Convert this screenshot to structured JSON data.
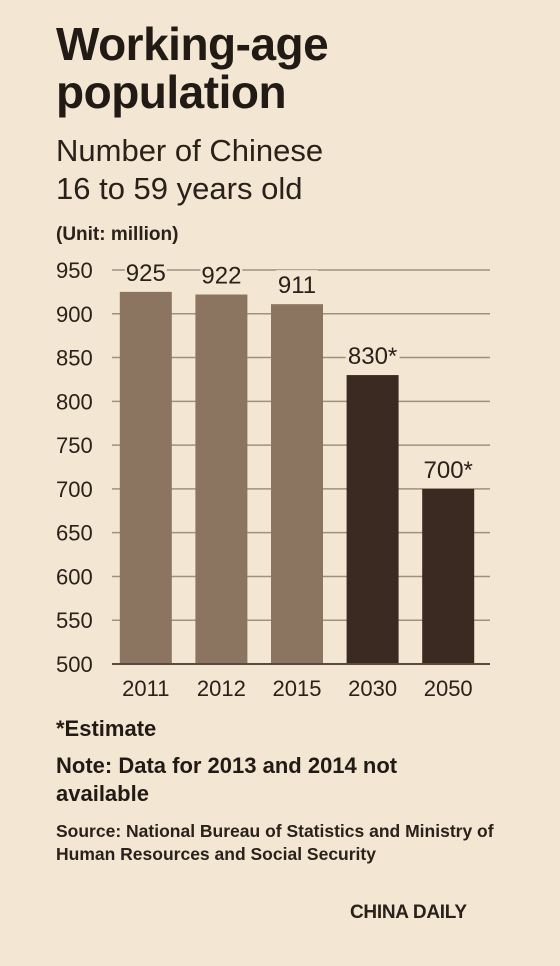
{
  "title": "Working-age\npopulation",
  "subtitle": "Number of Chinese\n 16 to 59 years old",
  "unit_label": "(Unit: million)",
  "chart_data": {
    "type": "bar",
    "categories": [
      "2011",
      "2012",
      "2015",
      "2030",
      "2050"
    ],
    "values": [
      925,
      922,
      911,
      830,
      700
    ],
    "data_labels": [
      "925",
      "922",
      "911",
      "830*",
      "700*"
    ],
    "estimated": [
      false,
      false,
      false,
      true,
      true
    ],
    "ylim": [
      500,
      950
    ],
    "yticks": [
      500,
      550,
      600,
      650,
      700,
      750,
      800,
      850,
      900,
      950
    ],
    "grid": true,
    "colors": {
      "actual": "#8c7560",
      "estimate": "#3a2a22",
      "grid": "#a0907f",
      "axis": "#5a4a3e"
    }
  },
  "footnote": "*Estimate",
  "note": "Note: Data for 2013 and 2014 not available",
  "source": "Source: National Bureau of Statistics and Ministry of Human Resources and Social Security",
  "brand": "CHINA DAILY"
}
